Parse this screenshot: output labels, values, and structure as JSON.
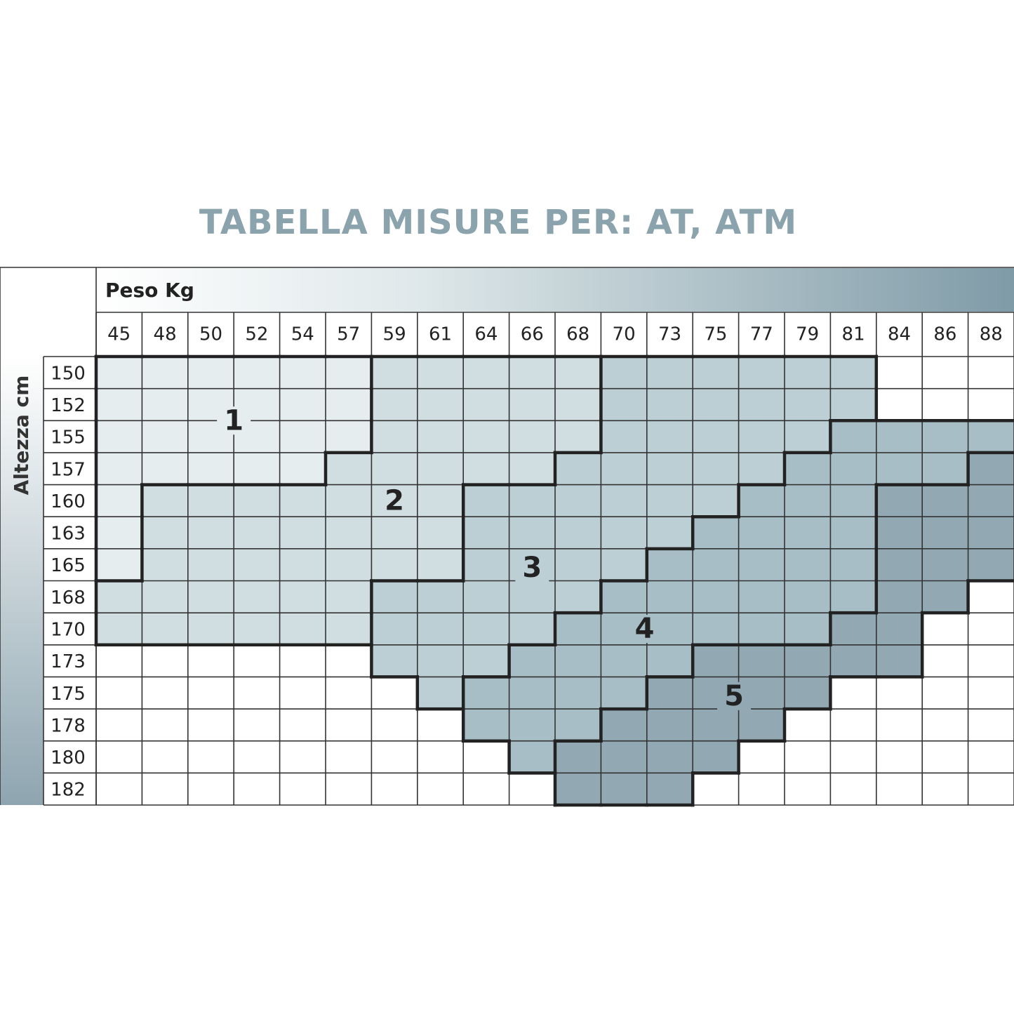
{
  "title": "TABELLA MISURE PER: AT, ATM",
  "table": {
    "column_header": "Peso Kg",
    "row_header": "Altezza cm",
    "columns": [
      45,
      48,
      50,
      52,
      54,
      57,
      59,
      61,
      64,
      66,
      68,
      70,
      73,
      75,
      77,
      79,
      81,
      84,
      86,
      88
    ],
    "rows": [
      150,
      152,
      155,
      157,
      160,
      163,
      165,
      168,
      170,
      173,
      175,
      178,
      180,
      182
    ],
    "zones": [
      "1",
      "2",
      "3",
      "4",
      "5"
    ]
  }
}
